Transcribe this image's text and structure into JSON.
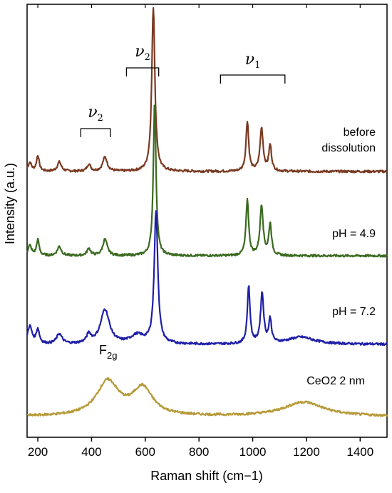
{
  "chart_data": {
    "type": "line",
    "title": "",
    "xlabel": "Raman shift (cm−1)",
    "ylabel": "Intensity (a.u.)",
    "xlim": [
      160,
      1500
    ],
    "xticks": [
      200,
      400,
      600,
      800,
      1000,
      1200,
      1400
    ],
    "y_ticks_shown": false,
    "grid": false,
    "legend": "none",
    "series": [
      {
        "name": "before dissolution",
        "label_lines": [
          "before",
          "dissolution"
        ],
        "color": "#7a3a22",
        "baseline": 0,
        "peaks": [
          [
            170,
            12,
            8
          ],
          [
            200,
            22,
            6
          ],
          [
            280,
            13,
            9
          ],
          [
            390,
            10,
            8
          ],
          [
            450,
            20,
            10
          ],
          [
            630,
            230,
            7
          ],
          [
            980,
            70,
            6
          ],
          [
            1033,
            60,
            7
          ],
          [
            1065,
            36,
            6
          ]
        ]
      },
      {
        "name": "pH = 4.9",
        "label_lines": [
          "pH = 4.9"
        ],
        "color": "#3a6a20",
        "baseline": 0,
        "peaks": [
          [
            170,
            14,
            8
          ],
          [
            200,
            22,
            6
          ],
          [
            280,
            13,
            9
          ],
          [
            390,
            10,
            8
          ],
          [
            450,
            23,
            10
          ],
          [
            635,
            215,
            6
          ],
          [
            980,
            78,
            6
          ],
          [
            1033,
            70,
            7
          ],
          [
            1065,
            44,
            6
          ]
        ]
      },
      {
        "name": "pH = 7.2",
        "label_lines": [
          "pH = 7.2"
        ],
        "color": "#1f1fa8",
        "baseline": 0,
        "peaks": [
          [
            170,
            25,
            10
          ],
          [
            200,
            20,
            7
          ],
          [
            280,
            14,
            12
          ],
          [
            390,
            12,
            10
          ],
          [
            450,
            48,
            20
          ],
          [
            570,
            12,
            30
          ],
          [
            640,
            185,
            8
          ],
          [
            985,
            80,
            6
          ],
          [
            1035,
            70,
            7
          ],
          [
            1065,
            33,
            6
          ],
          [
            1180,
            10,
            60
          ]
        ]
      },
      {
        "name": "CeO2 2 nm",
        "label_lines": [
          "CeO2 2 nm"
        ],
        "color": "#b69a3a",
        "baseline": 0,
        "peaks": [
          [
            460,
            48,
            50
          ],
          [
            590,
            38,
            45
          ],
          [
            1190,
            20,
            90
          ]
        ]
      }
    ],
    "annotations": [
      {
        "text": "ν2",
        "symbol": "ν",
        "sub": "2",
        "x_range": [
          360,
          470
        ]
      },
      {
        "text": "ν2",
        "symbol": "ν",
        "sub": "2",
        "x_range": [
          530,
          650
        ]
      },
      {
        "text": "ν1",
        "symbol": "ν",
        "sub": "1",
        "x_range": [
          880,
          1120
        ]
      },
      {
        "text": "F2g",
        "symbol": "F",
        "sub": "2g",
        "x": 460
      }
    ]
  }
}
